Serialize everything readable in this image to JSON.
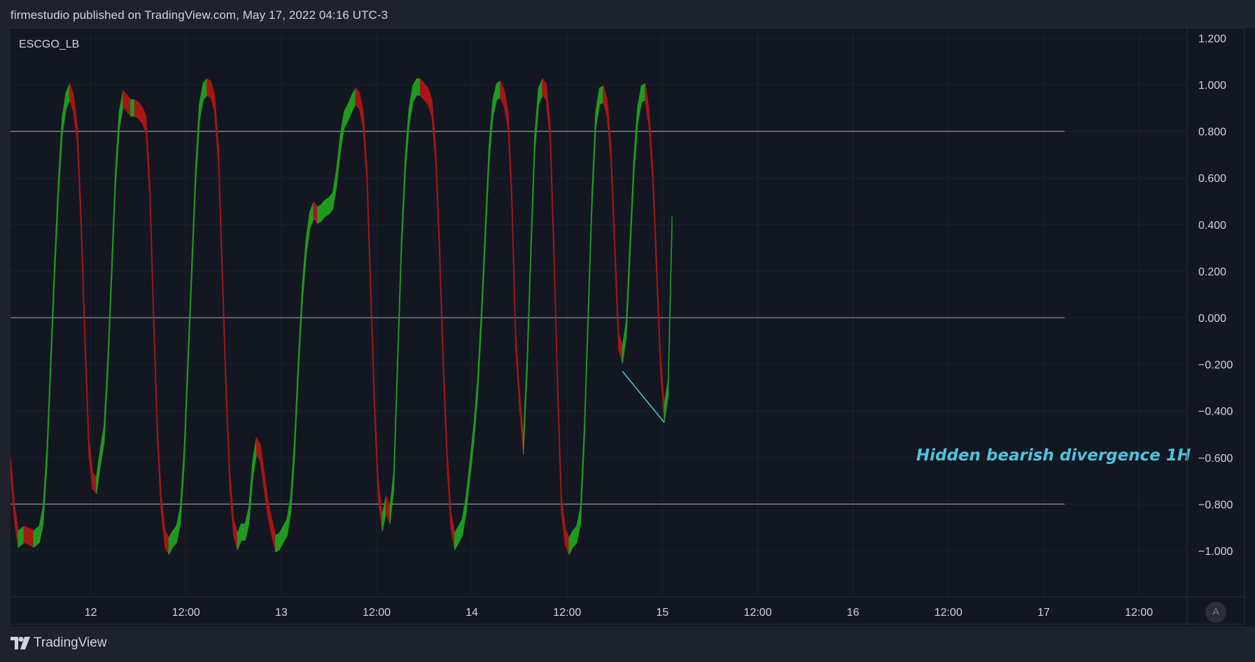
{
  "header": {
    "text": "firmestudio published on TradingView.com, May 17, 2022 04:16 UTC-3"
  },
  "footer": {
    "brand": "TradingView"
  },
  "scale_button": {
    "label": "A"
  },
  "colors": {
    "background": "#131722",
    "rising": "#1f9a1f",
    "falling": "#a51616",
    "level_line": "#8d9099",
    "annotation": "#4dc3dc",
    "text": "#d1d4dc"
  },
  "chart_data": {
    "type": "line",
    "indicator": "ESCGO_LB",
    "ylim": [
      -1.2,
      1.2
    ],
    "yticks": [
      "1.200",
      "1.000",
      "0.800",
      "0.600",
      "0.400",
      "0.200",
      "0.000",
      "−0.200",
      "−0.400",
      "−0.600",
      "−0.800",
      "−1.000"
    ],
    "ytick_values": [
      1.2,
      1.0,
      0.8,
      0.6,
      0.4,
      0.2,
      0.0,
      -0.2,
      -0.4,
      -0.6,
      -0.8,
      -1.0
    ],
    "xticks": [
      {
        "x": 1.0,
        "label": "12"
      },
      {
        "x": 1.5,
        "label": "12:00"
      },
      {
        "x": 2.0,
        "label": "13"
      },
      {
        "x": 2.5,
        "label": "12:00"
      },
      {
        "x": 3.0,
        "label": "14"
      },
      {
        "x": 3.5,
        "label": "12:00"
      },
      {
        "x": 4.0,
        "label": "15"
      },
      {
        "x": 4.5,
        "label": "12:00"
      },
      {
        "x": 5.0,
        "label": "16"
      },
      {
        "x": 5.5,
        "label": "12:00"
      },
      {
        "x": 6.0,
        "label": "17"
      },
      {
        "x": 6.5,
        "label": "12:00"
      }
    ],
    "xlim": [
      0.579,
      6.753
    ],
    "levels": [
      0.8,
      0.0,
      -0.8
    ],
    "series": [
      {
        "points": [
          [
            0.58,
            -0.64
          ],
          [
            0.6,
            -0.84
          ],
          [
            0.62,
            -0.95
          ],
          [
            0.65,
            -0.93
          ],
          [
            0.68,
            -0.94
          ],
          [
            0.7,
            -0.95
          ],
          [
            0.73,
            -0.93
          ],
          [
            0.75,
            -0.85
          ],
          [
            0.77,
            -0.6
          ],
          [
            0.79,
            -0.2
          ],
          [
            0.81,
            0.2
          ],
          [
            0.83,
            0.55
          ],
          [
            0.85,
            0.82
          ],
          [
            0.87,
            0.93
          ],
          [
            0.89,
            0.97
          ],
          [
            0.91,
            0.92
          ],
          [
            0.93,
            0.78
          ],
          [
            0.95,
            0.4
          ],
          [
            0.97,
            -0.1
          ],
          [
            0.99,
            -0.55
          ],
          [
            1.01,
            -0.7
          ],
          [
            1.03,
            -0.72
          ],
          [
            1.05,
            -0.6
          ],
          [
            1.07,
            -0.5
          ],
          [
            1.09,
            -0.2
          ],
          [
            1.11,
            0.2
          ],
          [
            1.13,
            0.6
          ],
          [
            1.15,
            0.85
          ],
          [
            1.17,
            0.94
          ],
          [
            1.19,
            0.92
          ],
          [
            1.21,
            0.9
          ],
          [
            1.23,
            0.9
          ],
          [
            1.25,
            0.89
          ],
          [
            1.27,
            0.87
          ],
          [
            1.29,
            0.83
          ],
          [
            1.31,
            0.55
          ],
          [
            1.33,
            0.0
          ],
          [
            1.35,
            -0.5
          ],
          [
            1.37,
            -0.8
          ],
          [
            1.39,
            -0.95
          ],
          [
            1.41,
            -0.98
          ],
          [
            1.43,
            -0.95
          ],
          [
            1.45,
            -0.93
          ],
          [
            1.47,
            -0.85
          ],
          [
            1.49,
            -0.6
          ],
          [
            1.51,
            -0.2
          ],
          [
            1.53,
            0.2
          ],
          [
            1.55,
            0.6
          ],
          [
            1.57,
            0.88
          ],
          [
            1.59,
            0.97
          ],
          [
            1.61,
            0.99
          ],
          [
            1.63,
            0.98
          ],
          [
            1.65,
            0.92
          ],
          [
            1.67,
            0.7
          ],
          [
            1.69,
            0.2
          ],
          [
            1.71,
            -0.3
          ],
          [
            1.73,
            -0.7
          ],
          [
            1.75,
            -0.9
          ],
          [
            1.77,
            -0.96
          ],
          [
            1.79,
            -0.92
          ],
          [
            1.81,
            -0.92
          ],
          [
            1.83,
            -0.85
          ],
          [
            1.85,
            -0.65
          ],
          [
            1.87,
            -0.55
          ],
          [
            1.89,
            -0.58
          ],
          [
            1.91,
            -0.7
          ],
          [
            1.93,
            -0.82
          ],
          [
            1.95,
            -0.9
          ],
          [
            1.97,
            -0.97
          ],
          [
            1.99,
            -0.96
          ],
          [
            2.01,
            -0.93
          ],
          [
            2.03,
            -0.9
          ],
          [
            2.05,
            -0.8
          ],
          [
            2.07,
            -0.55
          ],
          [
            2.09,
            -0.2
          ],
          [
            2.11,
            0.1
          ],
          [
            2.13,
            0.3
          ],
          [
            2.15,
            0.42
          ],
          [
            2.17,
            0.46
          ],
          [
            2.19,
            0.44
          ],
          [
            2.21,
            0.45
          ],
          [
            2.23,
            0.47
          ],
          [
            2.25,
            0.48
          ],
          [
            2.27,
            0.5
          ],
          [
            2.29,
            0.6
          ],
          [
            2.31,
            0.75
          ],
          [
            2.33,
            0.85
          ],
          [
            2.35,
            0.88
          ],
          [
            2.37,
            0.92
          ],
          [
            2.39,
            0.95
          ],
          [
            2.41,
            0.93
          ],
          [
            2.43,
            0.85
          ],
          [
            2.45,
            0.6
          ],
          [
            2.47,
            0.1
          ],
          [
            2.49,
            -0.4
          ],
          [
            2.51,
            -0.75
          ],
          [
            2.53,
            -0.88
          ],
          [
            2.55,
            -0.8
          ],
          [
            2.57,
            -0.85
          ],
          [
            2.59,
            -0.7
          ],
          [
            2.61,
            -0.2
          ],
          [
            2.63,
            0.3
          ],
          [
            2.65,
            0.65
          ],
          [
            2.67,
            0.86
          ],
          [
            2.69,
            0.96
          ],
          [
            2.71,
            0.99
          ],
          [
            2.73,
            0.99
          ],
          [
            2.75,
            0.97
          ],
          [
            2.77,
            0.95
          ],
          [
            2.79,
            0.9
          ],
          [
            2.81,
            0.7
          ],
          [
            2.83,
            0.3
          ],
          [
            2.85,
            -0.2
          ],
          [
            2.87,
            -0.6
          ],
          [
            2.89,
            -0.87
          ],
          [
            2.91,
            -0.96
          ],
          [
            2.93,
            -0.93
          ],
          [
            2.95,
            -0.9
          ],
          [
            2.97,
            -0.8
          ],
          [
            2.99,
            -0.65
          ],
          [
            3.01,
            -0.5
          ],
          [
            3.03,
            -0.3
          ],
          [
            3.05,
            0.0
          ],
          [
            3.07,
            0.35
          ],
          [
            3.09,
            0.7
          ],
          [
            3.11,
            0.9
          ],
          [
            3.13,
            0.97
          ],
          [
            3.15,
            0.98
          ],
          [
            3.17,
            0.94
          ],
          [
            3.19,
            0.85
          ],
          [
            3.21,
            0.5
          ],
          [
            3.23,
            -0.1
          ],
          [
            3.25,
            -0.35
          ],
          [
            3.27,
            -0.55
          ],
          [
            3.29,
            -0.2
          ],
          [
            3.31,
            0.3
          ],
          [
            3.33,
            0.75
          ],
          [
            3.35,
            0.95
          ],
          [
            3.37,
            0.99
          ],
          [
            3.39,
            0.97
          ],
          [
            3.41,
            0.8
          ],
          [
            3.43,
            0.3
          ],
          [
            3.45,
            -0.3
          ],
          [
            3.47,
            -0.8
          ],
          [
            3.49,
            -0.94
          ],
          [
            3.51,
            -0.98
          ],
          [
            3.53,
            -0.95
          ],
          [
            3.55,
            -0.93
          ],
          [
            3.57,
            -0.85
          ],
          [
            3.59,
            -0.5
          ],
          [
            3.61,
            0.0
          ],
          [
            3.63,
            0.5
          ],
          [
            3.65,
            0.85
          ],
          [
            3.67,
            0.95
          ],
          [
            3.69,
            0.96
          ],
          [
            3.71,
            0.9
          ],
          [
            3.73,
            0.7
          ],
          [
            3.75,
            0.3
          ],
          [
            3.77,
            -0.1
          ],
          [
            3.79,
            -0.16
          ],
          [
            3.81,
            -0.05
          ],
          [
            3.83,
            0.3
          ],
          [
            3.85,
            0.65
          ],
          [
            3.87,
            0.87
          ],
          [
            3.89,
            0.96
          ],
          [
            3.91,
            0.97
          ],
          [
            3.93,
            0.85
          ],
          [
            3.95,
            0.6
          ],
          [
            3.97,
            0.2
          ],
          [
            3.99,
            -0.2
          ],
          [
            4.01,
            -0.41
          ],
          [
            4.03,
            -0.3
          ],
          [
            4.05,
            0.4
          ]
        ]
      }
    ],
    "annotation": {
      "text": "Hidden bearish divergence 1H"
    },
    "annotation_line": {
      "x1": 3.79,
      "y1": -0.23,
      "x2": 4.01,
      "y2": -0.45
    }
  }
}
